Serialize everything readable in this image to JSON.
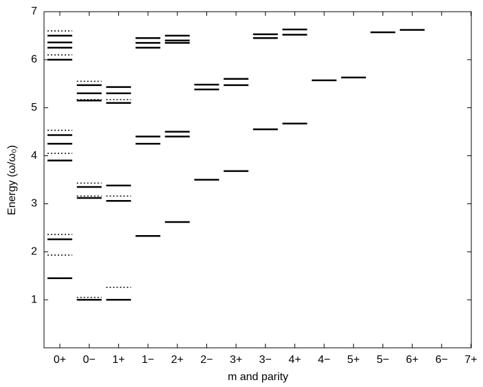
{
  "chart_data": {
    "type": "levels",
    "xlabel": "m and parity",
    "ylabel": "Energy (ω/ω₀)",
    "categories": [
      "0+",
      "0−",
      "1+",
      "1−",
      "2+",
      "2−",
      "3+",
      "3−",
      "4+",
      "4−",
      "5+",
      "5−",
      "6+",
      "6−",
      "7+"
    ],
    "ylim": [
      0,
      7
    ],
    "yticks": [
      1,
      2,
      3,
      4,
      5,
      6,
      7
    ],
    "series": [
      {
        "style": "solid",
        "color": "#000000",
        "values": [
          [
            6.5,
            6.36,
            6.25,
            6.0,
            4.43,
            4.25,
            3.9,
            2.26,
            1.45
          ],
          [
            5.47,
            5.3,
            5.15,
            3.35,
            3.12,
            1.0
          ],
          [
            5.43,
            5.3,
            5.1,
            3.38,
            3.06,
            1.0
          ],
          [
            6.45,
            6.35,
            6.25,
            4.4,
            4.25,
            2.33
          ],
          [
            6.5,
            6.4,
            6.35,
            4.5,
            4.4,
            2.62
          ],
          [
            5.48,
            5.38,
            3.5
          ],
          [
            5.6,
            5.47,
            3.68
          ],
          [
            6.53,
            6.45,
            4.55
          ],
          [
            6.63,
            6.52,
            4.67
          ],
          [
            5.57
          ],
          [
            5.63
          ],
          [
            6.57
          ],
          [
            6.62
          ],
          [],
          []
        ]
      },
      {
        "style": "dotted",
        "color": "#000000",
        "values": [
          [
            6.6,
            6.1,
            4.53,
            4.05,
            2.36,
            1.93
          ],
          [
            5.55,
            5.17,
            3.43,
            3.16,
            1.05
          ],
          [
            5.17,
            3.16,
            1.26
          ],
          [],
          [],
          [],
          [],
          [],
          [],
          [],
          [],
          [],
          [],
          [],
          []
        ]
      }
    ]
  }
}
